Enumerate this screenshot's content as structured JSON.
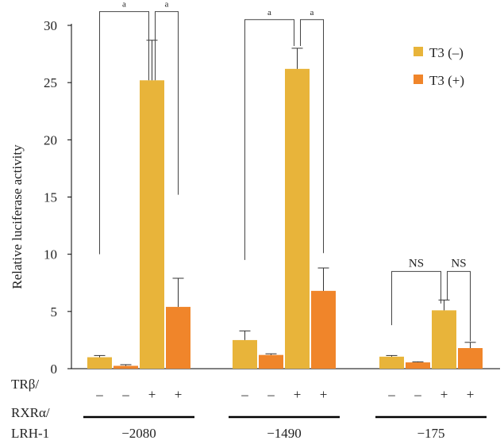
{
  "chart_data": {
    "type": "bar",
    "ylabel": "Relative luciferase activity",
    "ylim": [
      0,
      30
    ],
    "yticks": [
      0,
      5,
      10,
      15,
      20,
      25,
      30
    ],
    "grid": false,
    "legend_position": "top-right",
    "groups": [
      "−2080",
      "−1490",
      "−175"
    ],
    "series": [
      {
        "name": "T3 (–)",
        "color": "#E8B43A"
      },
      {
        "name": "T3 (+)",
        "color": "#F0852A"
      }
    ],
    "row_labels": [
      "TRβ/",
      "RXRα/",
      "LRH-1"
    ],
    "bars": [
      {
        "group": 0,
        "series": 0,
        "treatment": "–",
        "value": 1.0,
        "error": 0.15
      },
      {
        "group": 0,
        "series": 1,
        "treatment": "–",
        "value": 0.25,
        "error": 0.1
      },
      {
        "group": 0,
        "series": 0,
        "treatment": "+",
        "value": 25.2,
        "error": 3.5
      },
      {
        "group": 0,
        "series": 1,
        "treatment": "+",
        "value": 5.4,
        "error": 2.5
      },
      {
        "group": 1,
        "series": 0,
        "treatment": "–",
        "value": 2.5,
        "error": 0.8
      },
      {
        "group": 1,
        "series": 1,
        "treatment": "–",
        "value": 1.2,
        "error": 0.1
      },
      {
        "group": 1,
        "series": 0,
        "treatment": "+",
        "value": 26.2,
        "error": 1.8
      },
      {
        "group": 1,
        "series": 1,
        "treatment": "+",
        "value": 6.8,
        "error": 2.0
      },
      {
        "group": 2,
        "series": 0,
        "treatment": "–",
        "value": 1.05,
        "error": 0.1
      },
      {
        "group": 2,
        "series": 1,
        "treatment": "–",
        "value": 0.55,
        "error": 0.05
      },
      {
        "group": 2,
        "series": 0,
        "treatment": "+",
        "value": 5.1,
        "error": 0.9
      },
      {
        "group": 2,
        "series": 1,
        "treatment": "+",
        "value": 1.8,
        "error": 0.5
      }
    ],
    "annotations": [
      {
        "group": 0,
        "label": "a",
        "from_bar": 0,
        "to_bar": 2,
        "left_y": 10,
        "right_y": 25.2,
        "top_y": 31.2
      },
      {
        "group": 0,
        "label": "a",
        "from_bar": 2,
        "to_bar": 3,
        "left_y": 25.2,
        "right_y": 15.2,
        "top_y": 31.2
      },
      {
        "group": 1,
        "label": "a",
        "from_bar": 0,
        "to_bar": 2,
        "left_y": 9.5,
        "right_y": 28.2,
        "top_y": 30.5
      },
      {
        "group": 1,
        "label": "a",
        "from_bar": 2,
        "to_bar": 3,
        "left_y": 28.2,
        "right_y": 10.1,
        "top_y": 30.5
      },
      {
        "group": 2,
        "label": "NS",
        "from_bar": 0,
        "to_bar": 2,
        "left_y": 3.8,
        "right_y": 5.7,
        "top_y": 8.5
      },
      {
        "group": 2,
        "label": "NS",
        "from_bar": 2,
        "to_bar": 3,
        "left_y": 6.0,
        "right_y": 2.4,
        "top_y": 8.5
      }
    ]
  }
}
